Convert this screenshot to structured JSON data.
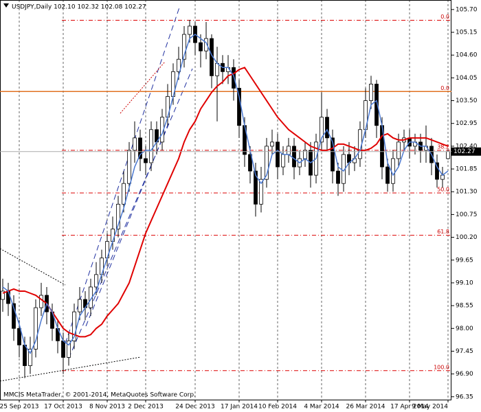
{
  "chart_data": {
    "type": "candlestick",
    "title": "USDJPY,Daily  102.10 102.32 102.08 102.27",
    "footer": "MMCIS MetaTrader, © 2001-2014, MetaQuotes Software Corp.",
    "open": [
      98.7,
      98.9,
      98.6,
      98.0,
      97.6,
      97.1,
      97.5,
      98.5,
      98.8,
      98.4,
      98.0,
      97.7,
      97.3,
      97.7,
      98.4,
      98.7,
      98.5,
      99.0,
      99.3,
      99.7,
      100.1,
      100.4,
      101.0,
      101.5,
      102.3,
      102.6,
      102.1,
      102.0,
      102.8,
      102.5,
      103.1,
      103.6,
      104.2,
      104.5,
      105.1,
      105.3,
      104.9,
      104.7,
      105.0,
      104.1,
      104.4,
      104.2,
      104.3,
      103.8,
      102.9,
      102.2,
      101.8,
      101.0,
      101.6,
      102.4,
      102.5,
      101.9,
      102.2,
      102.4,
      101.9,
      102.1,
      102.3,
      101.7,
      102.5,
      103.1,
      102.6,
      101.8,
      101.5,
      102.2,
      102.0,
      102.1,
      102.8,
      103.5,
      103.9,
      102.9,
      101.9,
      101.5,
      102.1,
      102.5,
      102.6,
      102.4,
      102.5,
      102.3,
      102.4,
      102.0,
      101.6,
      102.1
    ],
    "high": [
      99.2,
      99.1,
      98.8,
      98.2,
      97.8,
      97.8,
      98.7,
      99.1,
      99.0,
      98.6,
      98.2,
      97.9,
      97.9,
      98.6,
      99.0,
      98.9,
      99.2,
      99.6,
      99.9,
      100.3,
      100.7,
      101.2,
      101.8,
      102.5,
      103.0,
      102.8,
      102.4,
      103.0,
      103.0,
      103.3,
      103.9,
      104.4,
      104.8,
      105.3,
      105.45,
      105.4,
      105.1,
      105.4,
      105.1,
      104.8,
      104.6,
      104.6,
      104.5,
      104.0,
      103.1,
      102.4,
      102.0,
      101.9,
      102.6,
      102.8,
      102.7,
      102.4,
      102.6,
      102.6,
      102.3,
      102.5,
      102.5,
      102.7,
      103.7,
      103.3,
      102.8,
      102.0,
      102.4,
      102.5,
      102.4,
      103.0,
      103.8,
      104.1,
      104.0,
      103.1,
      102.1,
      102.3,
      102.7,
      102.8,
      102.8,
      102.7,
      102.7,
      102.9,
      102.6,
      102.2,
      101.9,
      102.32
    ],
    "low": [
      98.4,
      98.3,
      97.7,
      97.3,
      96.8,
      96.9,
      97.3,
      98.3,
      98.1,
      97.7,
      97.4,
      96.9,
      97.1,
      97.5,
      98.2,
      98.2,
      98.3,
      98.8,
      99.1,
      99.5,
      99.9,
      100.2,
      100.8,
      101.3,
      102.0,
      101.8,
      101.7,
      101.8,
      102.2,
      102.3,
      102.9,
      103.4,
      104.0,
      104.3,
      104.9,
      104.6,
      104.3,
      104.5,
      103.8,
      103.0,
      103.9,
      103.9,
      103.5,
      102.6,
      101.9,
      101.5,
      100.7,
      100.8,
      101.4,
      102.2,
      101.6,
      101.7,
      102.0,
      101.6,
      101.7,
      101.9,
      101.4,
      101.5,
      102.3,
      102.3,
      101.5,
      101.2,
      101.3,
      101.7,
      101.8,
      101.9,
      102.6,
      103.3,
      102.6,
      101.6,
      101.3,
      101.3,
      101.9,
      102.3,
      102.1,
      102.2,
      102.0,
      102.0,
      101.7,
      101.4,
      101.4,
      102.08
    ],
    "close": [
      98.9,
      98.6,
      98.0,
      97.6,
      97.1,
      97.5,
      98.5,
      98.8,
      98.4,
      98.0,
      97.7,
      97.3,
      97.7,
      98.4,
      98.7,
      98.5,
      99.0,
      99.3,
      99.7,
      100.1,
      100.4,
      101.0,
      101.5,
      102.3,
      102.6,
      102.1,
      102.0,
      102.8,
      102.5,
      103.1,
      103.6,
      104.2,
      104.5,
      105.1,
      105.3,
      104.9,
      104.7,
      105.0,
      104.1,
      104.4,
      104.2,
      104.3,
      103.8,
      102.9,
      102.2,
      101.8,
      101.0,
      101.6,
      102.4,
      102.5,
      101.9,
      102.2,
      102.4,
      101.9,
      102.1,
      102.3,
      101.7,
      102.5,
      103.1,
      102.6,
      101.8,
      101.5,
      102.2,
      102.0,
      102.1,
      102.8,
      103.5,
      103.9,
      102.9,
      101.9,
      101.5,
      102.1,
      102.5,
      102.6,
      102.4,
      102.5,
      102.3,
      102.4,
      102.0,
      101.6,
      101.7,
      102.27
    ],
    "series": [
      {
        "color": "#e00000",
        "values": [
          98.85,
          98.9,
          98.95,
          98.9,
          98.9,
          98.85,
          98.8,
          98.7,
          98.6,
          98.4,
          98.2,
          98.0,
          97.9,
          97.85,
          97.8,
          97.8,
          97.85,
          98.0,
          98.1,
          98.3,
          98.45,
          98.6,
          98.85,
          99.1,
          99.5,
          99.9,
          100.3,
          100.6,
          100.9,
          101.2,
          101.5,
          101.8,
          102.1,
          102.5,
          102.8,
          103.0,
          103.3,
          103.5,
          103.7,
          103.85,
          103.95,
          104.1,
          104.15,
          104.25,
          104.3,
          104.1,
          103.9,
          103.7,
          103.5,
          103.3,
          103.1,
          102.95,
          102.8,
          102.7,
          102.6,
          102.5,
          102.4,
          102.35,
          102.3,
          102.3,
          102.35,
          102.45,
          102.45,
          102.4,
          102.35,
          102.3,
          102.3,
          102.35,
          102.45,
          102.65,
          102.7,
          102.6,
          102.55,
          102.55,
          102.6,
          102.6,
          102.6,
          102.6,
          102.55,
          102.5,
          102.45,
          102.4
        ]
      },
      {
        "color": "#4a78d0",
        "values": [
          99.0,
          98.9,
          98.5,
          98.1,
          97.6,
          97.4,
          97.7,
          98.2,
          98.6,
          98.4,
          98.0,
          97.7,
          97.6,
          97.8,
          98.3,
          98.5,
          98.7,
          98.9,
          99.3,
          99.7,
          100.1,
          100.5,
          100.9,
          101.4,
          101.9,
          102.2,
          102.3,
          102.3,
          102.5,
          102.7,
          103.1,
          103.6,
          104.1,
          104.6,
          105.0,
          105.1,
          105.0,
          104.9,
          104.6,
          104.4,
          104.3,
          104.3,
          104.1,
          103.6,
          102.9,
          102.3,
          101.7,
          101.5,
          101.7,
          102.2,
          102.3,
          102.2,
          102.2,
          102.1,
          102.0,
          102.1,
          102.0,
          102.1,
          102.6,
          102.8,
          102.5,
          101.9,
          101.8,
          102.0,
          102.1,
          102.3,
          102.8,
          103.4,
          103.5,
          102.9,
          102.0,
          101.7,
          101.9,
          102.3,
          102.5,
          102.5,
          102.4,
          102.4,
          102.2,
          101.9,
          101.7,
          101.8
        ]
      }
    ],
    "ylim": [
      96.28,
      105.93
    ],
    "yticks": [
      {
        "value": 105.7,
        "label": "105.70"
      },
      105.15,
      {
        "value": 104.6,
        "label": "104.60"
      },
      104.05,
      {
        "value": 103.5,
        "label": "103.50"
      },
      102.95,
      {
        "value": 102.4,
        "label": "102.40"
      },
      101.85,
      {
        "value": 101.3,
        "label": "101.30"
      },
      100.75,
      {
        "value": 100.2,
        "label": "100.20"
      },
      99.65,
      {
        "value": 99.1,
        "label": "99.10"
      },
      98.55,
      {
        "value": 98.0,
        "label": "98.00"
      },
      97.45,
      {
        "value": 96.9,
        "label": "96.90"
      },
      96.35
    ],
    "xticks": [
      {
        "value": 3,
        "label": "25 Sep 2013"
      },
      {
        "value": 11,
        "label": "17 Oct 2013"
      },
      {
        "value": 19,
        "label": "8 Nov 2013"
      },
      {
        "value": 26,
        "label": "2 Dec 2013"
      },
      {
        "value": 35,
        "label": "24 Dec 2013"
      },
      {
        "value": 43,
        "label": "17 Jan 2014"
      },
      {
        "value": 50,
        "label": "10 Feb 2014"
      },
      {
        "value": 58,
        "label": "4 Mar 2014"
      },
      {
        "value": 66,
        "label": "26 Mar 2014"
      },
      {
        "value": 74,
        "label": "17 Apr 2014"
      },
      {
        "value": 81,
        "label": "9 May 2014"
      }
    ],
    "fib_levels": [
      {
        "label": "0.0",
        "value": 105.44
      },
      {
        "label": "38.2",
        "value": 102.3
      },
      {
        "label": "50.0",
        "value": 101.27
      },
      {
        "label": "61.8",
        "value": 100.25
      },
      {
        "label": "100.0",
        "value": 96.98
      }
    ],
    "level_line": {
      "label": "0.0",
      "value": 103.72,
      "color": "#e07020"
    },
    "grid": true
  }
}
